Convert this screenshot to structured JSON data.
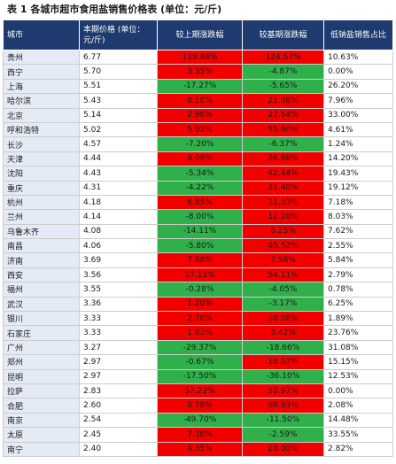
{
  "caption": "表 1  各城市超市食用盐销售价格表 (单位：元/斤)",
  "colors": {
    "header_bg": "#1f3a6e",
    "up": "#f20000",
    "down": "#2fb04a",
    "city_bg": "#e4ebf6"
  },
  "headers": {
    "city": "城市",
    "price": "本期价格 (单位：元/斤)",
    "mom": "较上期涨跌幅",
    "yoy": "较基期涨跌幅",
    "share": "低钠盐销售占比"
  },
  "rows": [
    {
      "city": "贵州",
      "price": "6.77",
      "mom": "119.84%",
      "yoy": "124.57%",
      "share": "10.63%"
    },
    {
      "city": "西宁",
      "price": "5.70",
      "mom": "3.35%",
      "yoy": "-4.87%",
      "share": "0.00%"
    },
    {
      "city": "上海",
      "price": "5.51",
      "mom": "-17.27%",
      "yoy": "-5.65%",
      "share": "26.20%"
    },
    {
      "city": "哈尔滨",
      "price": "5.43",
      "mom": "0.18%",
      "yoy": "21.48%",
      "share": "7.96%"
    },
    {
      "city": "北京",
      "price": "5.14",
      "mom": "2.96%",
      "yoy": "27.54%",
      "share": "33.00%"
    },
    {
      "city": "呼和浩特",
      "price": "5.02",
      "mom": "5.02%",
      "yoy": "55.90%",
      "share": "4.61%"
    },
    {
      "city": "长沙",
      "price": "4.57",
      "mom": "-7.20%",
      "yoy": "-6.37%",
      "share": "1.24%"
    },
    {
      "city": "天津",
      "price": "4.44",
      "mom": "9.09%",
      "yoy": "26.86%",
      "share": "14.20%"
    },
    {
      "city": "沈阳",
      "price": "4.43",
      "mom": "-5.34%",
      "yoy": "42.44%",
      "share": "19.43%"
    },
    {
      "city": "重庆",
      "price": "4.31",
      "mom": "-4.22%",
      "yoy": "31.40%",
      "share": "19.12%"
    },
    {
      "city": "杭州",
      "price": "4.18",
      "mom": "8.85%",
      "yoy": "31.03%",
      "share": "7.18%"
    },
    {
      "city": "兰州",
      "price": "4.14",
      "mom": "-8.00%",
      "yoy": "12.20%",
      "share": "8.03%"
    },
    {
      "city": "乌鲁木齐",
      "price": "4.08",
      "mom": "-14.11%",
      "yoy": "6.25%",
      "share": "7.62%"
    },
    {
      "city": "南昌",
      "price": "4.06",
      "mom": "-5.80%",
      "yoy": "45.52%",
      "share": "2.55%"
    },
    {
      "city": "济南",
      "price": "3.69",
      "mom": "7.58%",
      "yoy": "7.58%",
      "share": "5.84%"
    },
    {
      "city": "西安",
      "price": "3.56",
      "mom": "17.11%",
      "yoy": "54.11%",
      "share": "2.79%"
    },
    {
      "city": "福州",
      "price": "3.55",
      "mom": "-0.28%",
      "yoy": "-4.05%",
      "share": "0.78%"
    },
    {
      "city": "武汉",
      "price": "3.36",
      "mom": "1.20%",
      "yoy": "-3.17%",
      "share": "6.25%"
    },
    {
      "city": "银川",
      "price": "3.33",
      "mom": "2.78%",
      "yoy": "30.08%",
      "share": "1.89%"
    },
    {
      "city": "石家庄",
      "price": "3.33",
      "mom": "1.83%",
      "yoy": "3.42%",
      "share": "23.76%"
    },
    {
      "city": "广州",
      "price": "3.27",
      "mom": "-29.37%",
      "yoy": "-18.66%",
      "share": "31.08%"
    },
    {
      "city": "郑州",
      "price": "2.97",
      "mom": "-0.67%",
      "yoy": "16.02%",
      "share": "15.15%"
    },
    {
      "city": "昆明",
      "price": "2.97",
      "mom": "-17.50%",
      "yoy": "-36.10%",
      "share": "12.53%"
    },
    {
      "city": "拉萨",
      "price": "2.83",
      "mom": "57.22%",
      "yoy": "52.97%",
      "share": "0.00%"
    },
    {
      "city": "合肥",
      "price": "2.60",
      "mom": "0.78%",
      "yoy": "69.93%",
      "share": "2.08%"
    },
    {
      "city": "南京",
      "price": "2.54",
      "mom": "-49.70%",
      "yoy": "-11.50%",
      "share": "14.48%"
    },
    {
      "city": "太原",
      "price": "2.45",
      "mom": "7.38%",
      "yoy": "-2.59%",
      "share": "33.55%"
    },
    {
      "city": "南宁",
      "price": "2.40",
      "mom": "4.35%",
      "yoy": "20.00%",
      "share": "2.82%"
    }
  ]
}
